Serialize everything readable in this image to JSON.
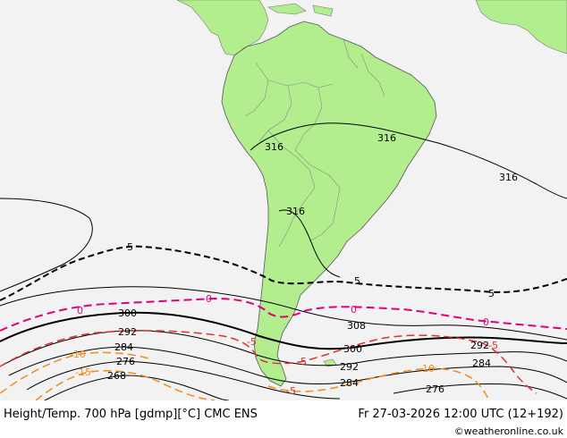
{
  "footer": {
    "title": "Height/Temp. 700 hPa [gdmp][°C] CMC ENS",
    "valid_time": "Fr 27-03-2026 12:00 UTC (12+192)",
    "credit": "©weatheronline.co.uk"
  },
  "colors": {
    "land": "#b2ee8e",
    "sea": "#f2f2f2",
    "height_contour": "#000000",
    "temp_zero": "#e0007a",
    "temp_minus5": "#e03030",
    "temp_minus10": "#f08c1e",
    "temp_minus15": "#f08c1e",
    "temp_plus5": "#000000"
  },
  "height_labels": [
    "316",
    "316",
    "316",
    "316",
    "308",
    "300",
    "300",
    "292",
    "292",
    "292",
    "284",
    "284",
    "284",
    "276",
    "276",
    "268"
  ],
  "temp_labels": [
    "5",
    "5",
    "5",
    "0",
    "0",
    "0",
    "0",
    "-5",
    "-5",
    "-5",
    "-10",
    "-10",
    "-15",
    "-5"
  ]
}
